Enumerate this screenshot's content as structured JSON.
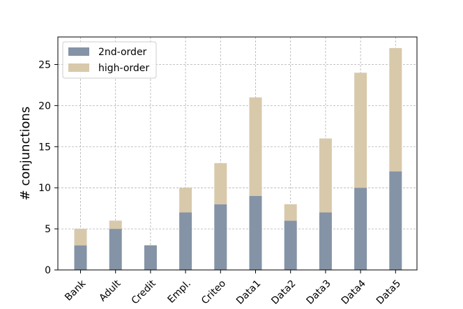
{
  "chart_data": {
    "type": "bar",
    "stacked": true,
    "categories": [
      "Bank",
      "Adult",
      "Credit",
      "Empl.",
      "Criteo",
      "Data1",
      "Data2",
      "Data3",
      "Data4",
      "Data5"
    ],
    "series": [
      {
        "name": "2nd-order",
        "values": [
          3,
          5,
          3,
          7,
          8,
          9,
          6,
          7,
          10,
          12
        ],
        "color": "#8593a6"
      },
      {
        "name": "high-order",
        "values": [
          2,
          1,
          0,
          3,
          5,
          12,
          2,
          9,
          14,
          15
        ],
        "color": "#d8c9ab"
      }
    ],
    "ylabel": "# conjunctions",
    "ylim": [
      0,
      28.35
    ],
    "yticks": [
      0,
      5,
      10,
      15,
      20,
      25
    ],
    "grid": true,
    "legend_position": "top-left"
  }
}
